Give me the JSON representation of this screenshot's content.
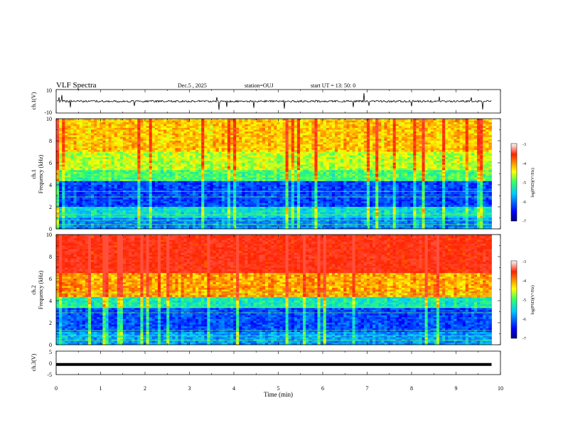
{
  "header": {
    "title": "VLF Spectra",
    "date": "Dec.5 , 2025",
    "station": "station=OUJ",
    "start": "start UT = 13: 50: 0"
  },
  "chart_data": [
    {
      "type": "line",
      "panel": "ch.1 waveform",
      "ylabel": "ch.1(V)",
      "ylim": [
        -10,
        10
      ],
      "yticks": [
        "10",
        "-10"
      ],
      "xlim": [
        0,
        10
      ],
      "baseline": 0,
      "notes": "noisy waveform around 0 V with spikes"
    },
    {
      "type": "heatmap",
      "panel": "ch.1 spectrogram",
      "ylabel": "ch.1",
      "ylabel2": "Frequency (kHz)",
      "xlim": [
        0,
        10
      ],
      "ylim": [
        0,
        10
      ],
      "yticks": [
        "0",
        "2",
        "4",
        "6",
        "8",
        "10"
      ],
      "data_end_min": 9.8,
      "colorbar": {
        "label": "log(PSD)(V²/Hz)",
        "range": [
          -7,
          -3
        ],
        "ticks": [
          "-3",
          "-4",
          "-5",
          "-6",
          "-7"
        ]
      },
      "level_bands_khz": [
        [
          0,
          1,
          -5.9
        ],
        [
          1,
          2,
          -5.4
        ],
        [
          2,
          4.3,
          -6.2
        ],
        [
          4.3,
          5.4,
          -5.0
        ],
        [
          5.4,
          7,
          -4.6
        ],
        [
          7,
          10,
          -4.2
        ]
      ]
    },
    {
      "type": "heatmap",
      "panel": "ch.2 spectrogram",
      "ylabel": "ch.2",
      "ylabel2": "Frequency (kHz)",
      "xlim": [
        0,
        10
      ],
      "ylim": [
        0,
        10
      ],
      "yticks": [
        "0",
        "2",
        "4",
        "6",
        "8",
        "10"
      ],
      "data_end_min": 9.8,
      "colorbar": {
        "label": "log(PSD)(V²/Hz)",
        "range": [
          -7,
          -3
        ],
        "ticks": [
          "-3",
          "-4",
          "-5",
          "-6",
          "-7"
        ]
      },
      "level_bands_khz": [
        [
          0,
          1.2,
          -5.8
        ],
        [
          1.2,
          3.3,
          -6.2
        ],
        [
          3.3,
          4.3,
          -5.3
        ],
        [
          4.3,
          6.5,
          -4.1
        ],
        [
          6.5,
          10,
          -3.4
        ]
      ]
    },
    {
      "type": "line",
      "panel": "ch.3 waveform",
      "ylabel": "ch.3(V)",
      "ylim": [
        -5,
        5
      ],
      "yticks": [
        "5",
        "0",
        "-5"
      ],
      "xlim": [
        0,
        10
      ],
      "baseline": -0.7,
      "notes": "flat thick line"
    }
  ],
  "xaxis": {
    "label": "Time (min)",
    "ticks": [
      "0",
      "1",
      "2",
      "3",
      "4",
      "5",
      "6",
      "7",
      "8",
      "9",
      "10"
    ]
  },
  "colors": {
    "axis": "#000000",
    "background": "#ffffff"
  }
}
